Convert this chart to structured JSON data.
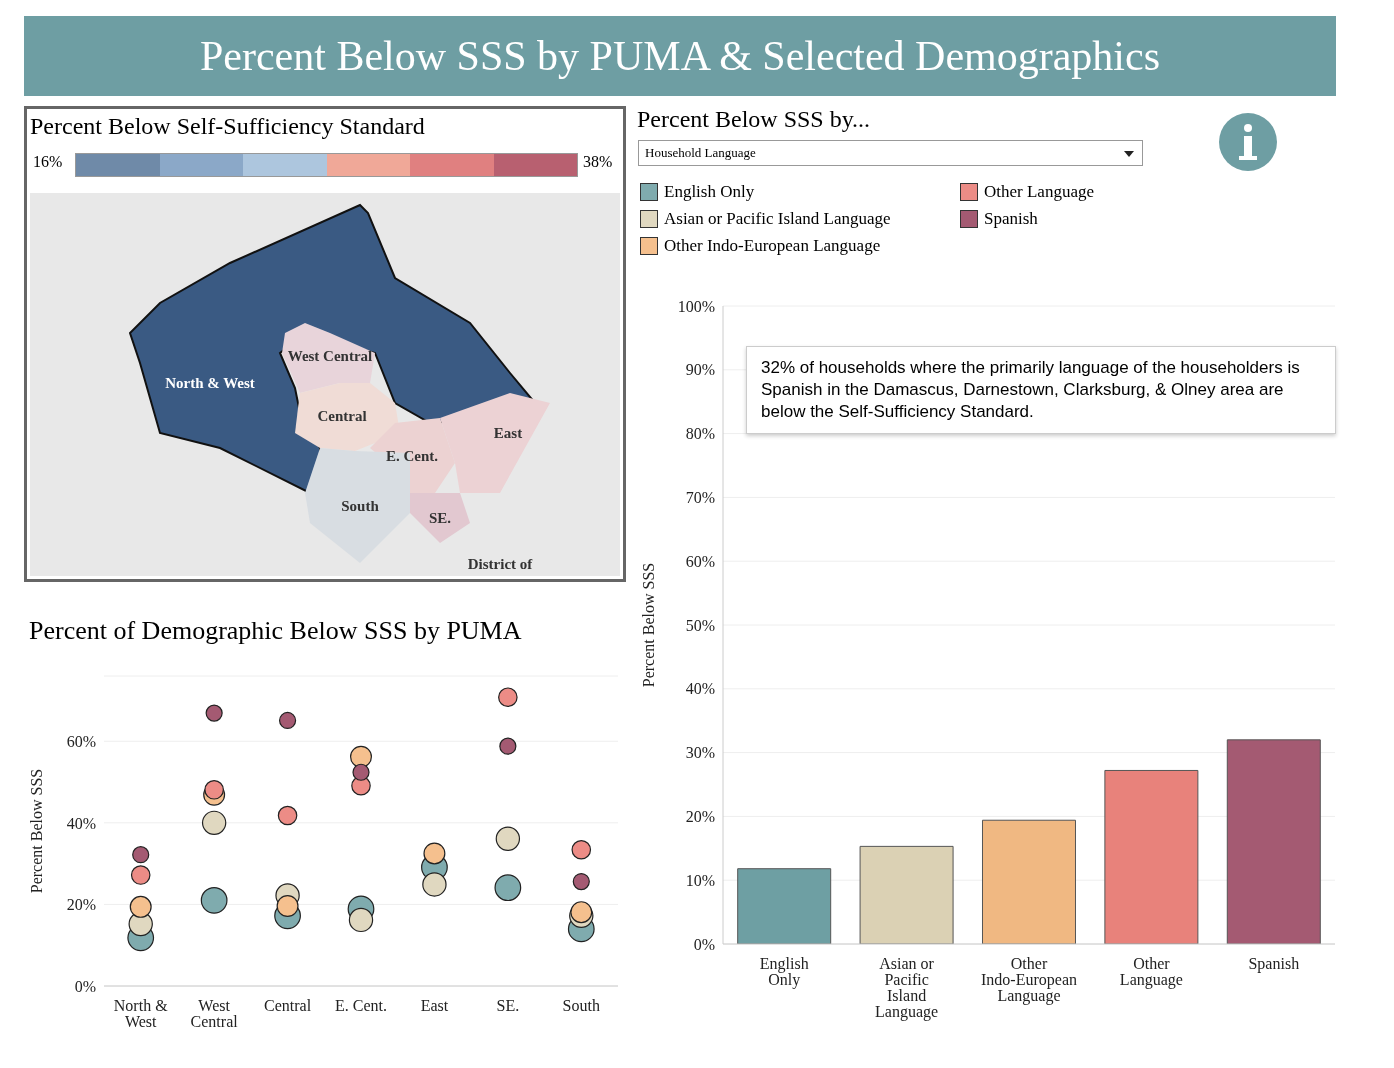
{
  "chart_data": [
    {
      "type": "other",
      "title": "Percent Below SSS by PUMA & Selected Demographics"
    },
    {
      "type": "other",
      "title": "Percent Below Self-Sufficiency Standard",
      "colors": [
        "#6f8aa8",
        "#8ba8c8",
        "#adc6de",
        "#f0a898",
        "#e08080",
        "#b86070"
      ],
      "annotations": [
        "16%",
        "38%",
        "North & West",
        "West Central",
        "Central",
        "E. Cent.",
        "East",
        "South",
        "SE.",
        "District of"
      ]
    },
    {
      "type": "scatter",
      "title": "Percent of Demographic Below SSS by PUMA",
      "ylabel": "Percent Below SSS",
      "categories": [
        "North & West",
        "West Central",
        "Central",
        "E. Cent.",
        "East",
        "SE.",
        "South"
      ],
      "series": [
        {
          "name": "English Only",
          "color": "#7fabae",
          "values": [
            11.8,
            21.0,
            17.2,
            18.9,
            29.1,
            24.1,
            14.0
          ]
        },
        {
          "name": "Asian or Pacific Island Language",
          "color": "#e0d8c0",
          "values": [
            15.2,
            40.0,
            22.2,
            16.2,
            24.9,
            36.1,
            17.2
          ]
        },
        {
          "name": "Other Indo-European Language",
          "color": "#f5c08e",
          "values": [
            19.4,
            46.9,
            19.6,
            56.2,
            32.5,
            null,
            18.1
          ]
        },
        {
          "name": "Other Language",
          "color": "#ec8c86",
          "values": [
            27.2,
            48.1,
            41.8,
            49.1,
            null,
            70.8,
            33.4
          ]
        },
        {
          "name": "Spanish",
          "color": "#a45a72",
          "values": [
            32.2,
            66.9,
            65.1,
            52.4,
            null,
            58.8,
            25.6
          ]
        }
      ],
      "ylim": [
        0,
        76
      ],
      "yticks": [
        {
          "value": 0,
          "label": "0%"
        },
        {
          "value": 20,
          "label": "20%"
        },
        {
          "value": 40,
          "label": "40%"
        },
        {
          "value": 60,
          "label": "60%"
        }
      ],
      "grid": "y",
      "marker": "circle",
      "legend": "top right"
    },
    {
      "type": "bar",
      "title": "Percent Below SSS by...",
      "subtitle": "Household Language",
      "ylabel": "Percent Below SSS",
      "categories": [
        "English Only",
        "Asian or Pacific Island Language",
        "Other Indo-European Language",
        "Other Language",
        "Spanish"
      ],
      "values": [
        11.8,
        15.3,
        19.4,
        27.2,
        32
      ],
      "colors": [
        "#6e9fa3",
        "#dbd1b4",
        "#f0b882",
        "#e8827b",
        "#a45a72"
      ],
      "ylim": [
        0,
        100
      ],
      "yticks": [
        {
          "value": 0,
          "label": "0%"
        },
        {
          "value": 10,
          "label": "10%"
        },
        {
          "value": 20,
          "label": "20%"
        },
        {
          "value": 30,
          "label": "30%"
        },
        {
          "value": 40,
          "label": "40%"
        },
        {
          "value": 50,
          "label": "50%"
        },
        {
          "value": 60,
          "label": "60%"
        },
        {
          "value": 70,
          "label": "70%"
        },
        {
          "value": 80,
          "label": "80%"
        },
        {
          "value": 90,
          "label": "90%"
        },
        {
          "value": 100,
          "label": "100%"
        }
      ],
      "grid": "y",
      "annotations": [
        "32% of households where the primarily language of the householders is  Spanish in the Damascus, Darnestown, Clarksburg, & Olney area are below the Self-Sufficiency Standard."
      ]
    }
  ]
}
